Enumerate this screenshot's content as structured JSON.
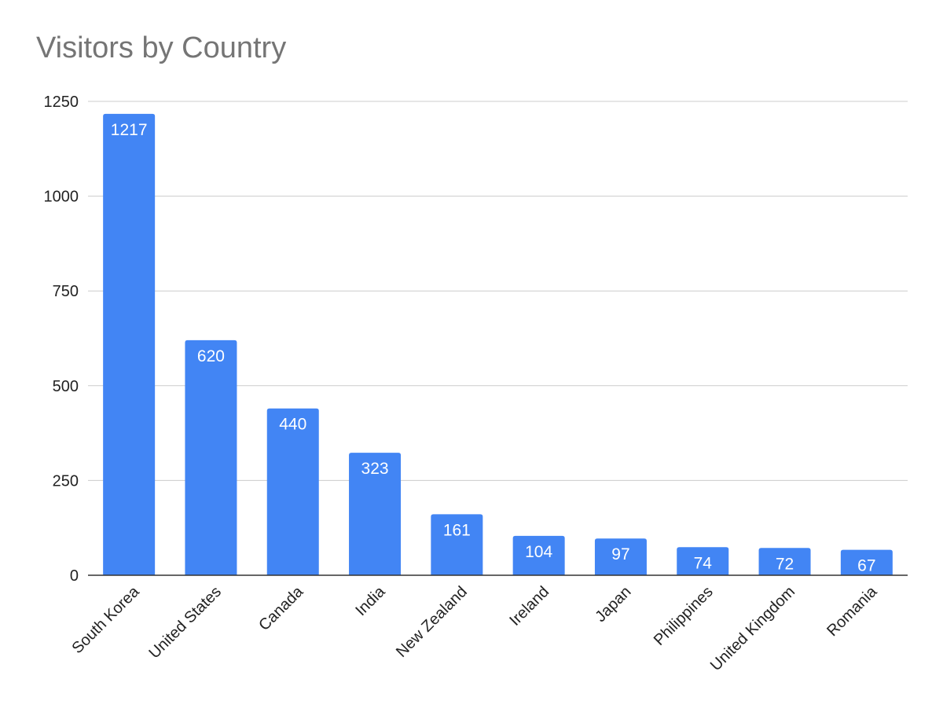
{
  "chart_data": {
    "type": "bar",
    "title": "Visitors by Country",
    "xlabel": "",
    "ylabel": "",
    "categories": [
      "South Korea",
      "United States",
      "Canada",
      "India",
      "New Zealand",
      "Ireland",
      "Japan",
      "Philippines",
      "United Kingdom",
      "Romania"
    ],
    "values": [
      1217,
      620,
      440,
      323,
      161,
      104,
      97,
      74,
      72,
      67
    ],
    "data_labels": [
      "1217",
      "620",
      "440",
      "323",
      "161",
      "104",
      "97",
      "74",
      "72",
      "67"
    ],
    "ylim": [
      0,
      1250
    ],
    "yticks": [
      0,
      250,
      500,
      750,
      1000,
      1250
    ],
    "ytick_labels": [
      "0",
      "250",
      "500",
      "750",
      "1000",
      "1250"
    ],
    "grid": true,
    "legend": "none",
    "colors": {
      "bar": "#4285f4",
      "grid": "#cccccc",
      "axis": "#333333",
      "title": "#757575"
    }
  }
}
